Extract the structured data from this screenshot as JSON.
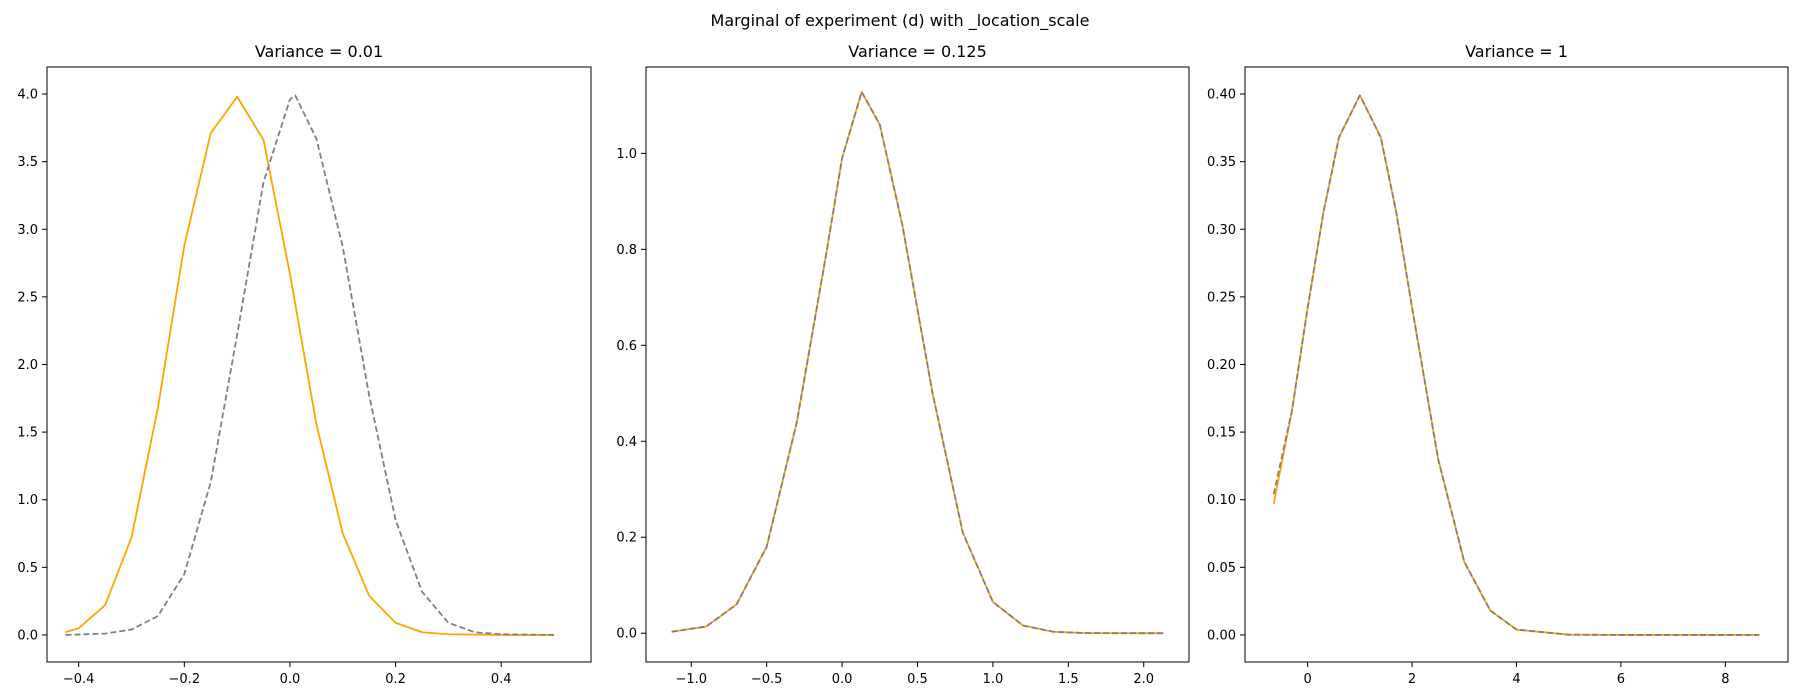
{
  "figure": {
    "suptitle": "Marginal of experiment (d) with _location_scale"
  },
  "colors": {
    "solid": "#FFA500",
    "dashed": "#808080",
    "axes": "#000000",
    "background": "#FFFFFF"
  },
  "chart_data": [
    {
      "type": "line",
      "title": "Variance = 0.01",
      "xlim": [
        -0.46,
        0.57
      ],
      "ylim": [
        -0.2,
        4.2
      ],
      "xticks": [
        -0.4,
        -0.2,
        0.0,
        0.2,
        0.4
      ],
      "xtick_labels": [
        "−0.4",
        "−0.2",
        "0.0",
        "0.2",
        "0.4"
      ],
      "yticks": [
        0.0,
        0.5,
        1.0,
        1.5,
        2.0,
        2.5,
        3.0,
        3.5,
        4.0
      ],
      "ytick_labels": [
        "0.0",
        "0.5",
        "1.0",
        "1.5",
        "2.0",
        "2.5",
        "3.0",
        "3.5",
        "4.0"
      ],
      "series": [
        {
          "style": "solid",
          "color": "#FFA500",
          "x": [
            -0.425,
            -0.4,
            -0.35,
            -0.3,
            -0.25,
            -0.2,
            -0.15,
            -0.1,
            -0.05,
            0.0,
            0.05,
            0.1,
            0.15,
            0.2,
            0.25,
            0.3,
            0.4,
            0.5
          ],
          "y": [
            0.02,
            0.05,
            0.22,
            0.72,
            1.68,
            2.88,
            3.71,
            3.98,
            3.66,
            2.67,
            1.56,
            0.75,
            0.29,
            0.09,
            0.02,
            0.005,
            0.0,
            0.0
          ]
        },
        {
          "style": "dashed",
          "color": "#808080",
          "x": [
            -0.425,
            -0.35,
            -0.3,
            -0.25,
            -0.2,
            -0.15,
            -0.1,
            -0.05,
            0.0,
            0.01,
            0.05,
            0.1,
            0.15,
            0.2,
            0.25,
            0.3,
            0.35,
            0.4,
            0.5
          ],
          "y": [
            0.0,
            0.01,
            0.04,
            0.14,
            0.45,
            1.13,
            2.22,
            3.35,
            3.96,
            3.99,
            3.67,
            2.87,
            1.77,
            0.85,
            0.32,
            0.09,
            0.02,
            0.005,
            0.0
          ]
        }
      ]
    },
    {
      "type": "line",
      "title": "Variance = 0.125",
      "xlim": [
        -1.3,
        2.3
      ],
      "ylim": [
        -0.06,
        1.18
      ],
      "xticks": [
        -1.0,
        -0.5,
        0.0,
        0.5,
        1.0,
        1.5,
        2.0
      ],
      "xtick_labels": [
        "−1.0",
        "−0.5",
        "0.0",
        "0.5",
        "1.0",
        "1.5",
        "2.0"
      ],
      "yticks": [
        0.0,
        0.2,
        0.4,
        0.6,
        0.8,
        1.0
      ],
      "ytick_labels": [
        "0.0",
        "0.2",
        "0.4",
        "0.6",
        "0.8",
        "1.0"
      ],
      "series": [
        {
          "style": "solid",
          "color": "#FFA500",
          "x": [
            -1.13,
            -0.9,
            -0.7,
            -0.5,
            -0.3,
            -0.1,
            0.0,
            0.13,
            0.25,
            0.4,
            0.6,
            0.8,
            1.0,
            1.2,
            1.4,
            1.6,
            1.8,
            2.0,
            2.13
          ],
          "y": [
            0.003,
            0.014,
            0.06,
            0.18,
            0.44,
            0.8,
            0.99,
            1.128,
            1.06,
            0.85,
            0.5,
            0.21,
            0.065,
            0.016,
            0.003,
            0.0005,
            0.0,
            0.0,
            0.0
          ]
        },
        {
          "style": "dashed",
          "color": "#808080",
          "x": [
            -1.13,
            -0.9,
            -0.7,
            -0.5,
            -0.3,
            -0.1,
            0.0,
            0.13,
            0.25,
            0.4,
            0.6,
            0.8,
            1.0,
            1.2,
            1.4,
            1.6,
            1.8,
            2.0,
            2.13
          ],
          "y": [
            0.003,
            0.014,
            0.06,
            0.18,
            0.44,
            0.8,
            0.99,
            1.128,
            1.06,
            0.85,
            0.5,
            0.21,
            0.065,
            0.016,
            0.003,
            0.0005,
            0.0,
            0.0,
            0.0
          ]
        }
      ]
    },
    {
      "type": "line",
      "title": "Variance = 1",
      "xlim": [
        -1.2,
        9.2
      ],
      "ylim": [
        -0.02,
        0.42
      ],
      "xticks": [
        0,
        2,
        4,
        6,
        8
      ],
      "xtick_labels": [
        "0",
        "2",
        "4",
        "6",
        "8"
      ],
      "yticks": [
        0.0,
        0.05,
        0.1,
        0.15,
        0.2,
        0.25,
        0.3,
        0.35,
        0.4
      ],
      "ytick_labels": [
        "0.00",
        "0.05",
        "0.10",
        "0.15",
        "0.20",
        "0.25",
        "0.30",
        "0.35",
        "0.40"
      ],
      "series": [
        {
          "style": "solid",
          "color": "#FFA500",
          "x": [
            -0.65,
            -0.3,
            0.0,
            0.3,
            0.6,
            1.0,
            1.4,
            1.7,
            2.0,
            2.5,
            3.0,
            3.5,
            4.0,
            5.0,
            6.0,
            7.0,
            8.0,
            8.65
          ],
          "y": [
            0.097,
            0.166,
            0.242,
            0.312,
            0.368,
            0.399,
            0.368,
            0.312,
            0.242,
            0.13,
            0.054,
            0.018,
            0.004,
            0.0002,
            0.0,
            0.0,
            0.0,
            0.0
          ]
        },
        {
          "style": "dashed",
          "color": "#808080",
          "x": [
            -0.65,
            -0.3,
            0.0,
            0.3,
            0.6,
            1.0,
            1.4,
            1.7,
            2.0,
            2.5,
            3.0,
            3.5,
            4.0,
            5.0,
            6.0,
            7.0,
            8.0,
            8.65
          ],
          "y": [
            0.104,
            0.166,
            0.242,
            0.312,
            0.368,
            0.399,
            0.368,
            0.312,
            0.242,
            0.13,
            0.054,
            0.018,
            0.004,
            0.0002,
            0.0,
            0.0,
            0.0,
            0.0
          ]
        }
      ]
    }
  ]
}
